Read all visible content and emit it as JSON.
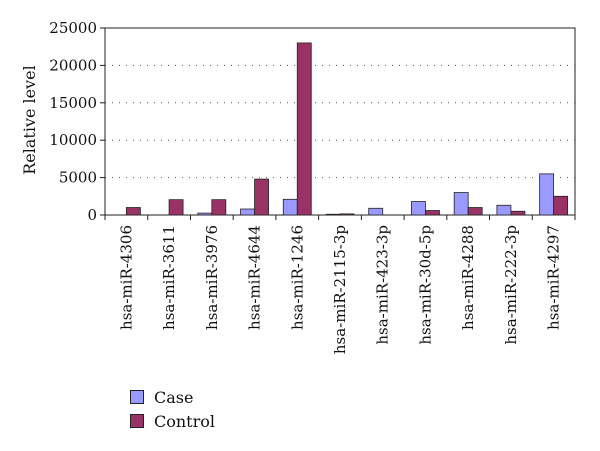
{
  "chart_data": {
    "type": "bar",
    "title": "",
    "xlabel": "",
    "ylabel": "Relative level",
    "ylim": [
      0,
      25000
    ],
    "yticks": [
      0,
      5000,
      10000,
      15000,
      20000,
      25000
    ],
    "grid": "dotted-horizontal",
    "legend_position": "bottom-left",
    "categories": [
      "hsa-miR-4306",
      "hsa-miR-3611",
      "hsa-miR-3976",
      "hsa-miR-4644",
      "hsa-miR-1246",
      "hsa-miR-2115-3p",
      "hsa-miR-423-3p",
      "hsa-miR-30d-5p",
      "hsa-miR-4288",
      "hsa-miR-222-3p",
      "hsa-miR-4297"
    ],
    "series": [
      {
        "name": "Case",
        "color": "#9999ff",
        "values": [
          0,
          0,
          250,
          800,
          2100,
          100,
          900,
          1800,
          3000,
          1300,
          5500
        ]
      },
      {
        "name": "Control",
        "color": "#993366",
        "values": [
          1000,
          2050,
          2050,
          4800,
          23000,
          150,
          0,
          600,
          1000,
          500,
          2500
        ]
      }
    ]
  }
}
